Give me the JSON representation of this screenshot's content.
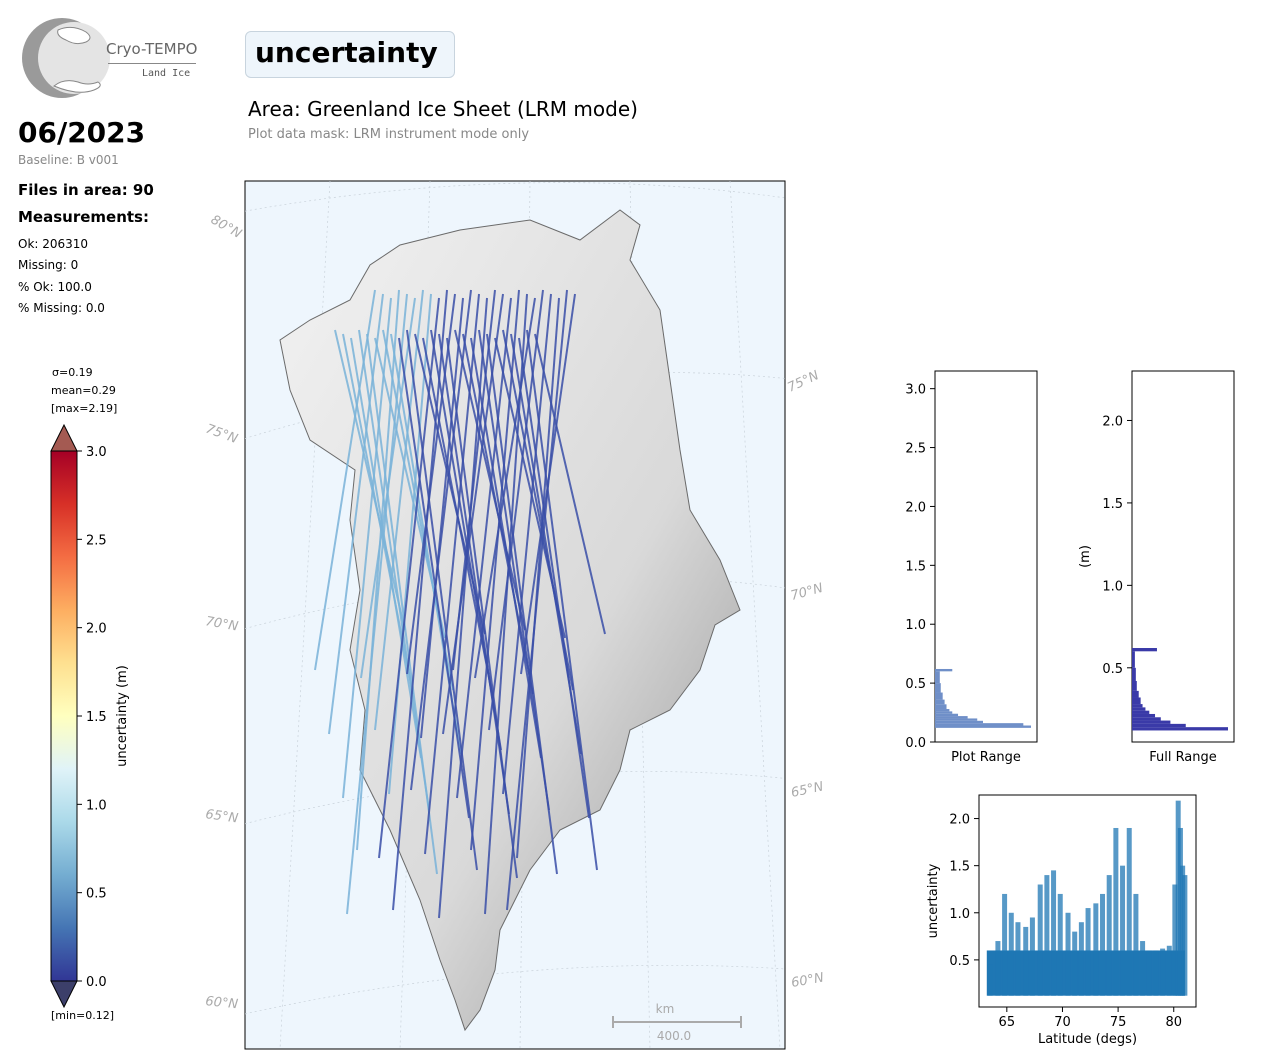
{
  "logo": {
    "name": "Cryo-TEMPO",
    "sub": "Land Ice"
  },
  "header": {
    "date": "06/2023",
    "baseline": "Baseline: B v001",
    "files": "Files in area: 90",
    "measurements_heading": "Measurements:",
    "stats": [
      "Ok: 206310",
      "Missing: 0",
      "% Ok: 100.0",
      "% Missing: 0.0"
    ],
    "title": "uncertainty",
    "area": "Area: Greenland Ice Sheet (LRM mode)",
    "mask": "Plot data mask: LRM instrument mode only"
  },
  "colorbar": {
    "label": "uncertainty (m)",
    "ticks": [
      "3.0",
      "2.5",
      "2.0",
      "1.5",
      "1.0",
      "0.5",
      "0.0"
    ],
    "sigma": "σ=0.19",
    "mean": "mean=0.29",
    "max": "[max=2.19]",
    "min": "[min=0.12]"
  },
  "map": {
    "lat_labels": [
      "80°N",
      "75°N",
      "70°N",
      "65°N",
      "60°N",
      "75°N",
      "70°N",
      "65°N",
      "60°N"
    ],
    "scale_unit": "km",
    "scale_value": "400.0"
  },
  "colors": {
    "ocean": "#eef6fd",
    "track_dark": "#3a4fa8",
    "track_light": "#7ab3d9",
    "scatter": "#1f77b4",
    "hist_full": "#3a3aa8"
  },
  "chart_data": [
    {
      "type": "bar",
      "orientation": "horizontal",
      "xlabel": "Plot Range",
      "ylim": [
        0,
        3.15
      ],
      "yticks": [
        "0.0",
        "0.5",
        "1.0",
        "1.5",
        "2.0",
        "2.5",
        "3.0"
      ],
      "bins": [
        0.12,
        0.14,
        0.16,
        0.18,
        0.2,
        0.22,
        0.24,
        0.26,
        0.28,
        0.32,
        0.36,
        0.42,
        0.5,
        0.6
      ],
      "counts": [
        100,
        92,
        50,
        44,
        34,
        24,
        18,
        15,
        12,
        10,
        8,
        6,
        5,
        18
      ]
    },
    {
      "type": "bar",
      "orientation": "horizontal",
      "xlabel": "Full Range",
      "ylabel": "(m)",
      "ylim": [
        0.05,
        2.3
      ],
      "yticks": [
        "0.5",
        "1.0",
        "1.5",
        "2.0"
      ],
      "bins": [
        0.12,
        0.14,
        0.16,
        0.18,
        0.2,
        0.22,
        0.24,
        0.26,
        0.28,
        0.32,
        0.36,
        0.42,
        0.5,
        0.6
      ],
      "counts": [
        100,
        56,
        40,
        30,
        24,
        18,
        14,
        11,
        9,
        7,
        5,
        4,
        3,
        26
      ]
    },
    {
      "type": "scatter",
      "xlabel": "Latitude (degs)",
      "ylabel": "uncertainty",
      "xlim": [
        62.5,
        82
      ],
      "ylim": [
        0,
        2.25
      ],
      "xticks": [
        65,
        70,
        75,
        80
      ],
      "yticks": [
        0.5,
        1.0,
        1.5,
        2.0
      ],
      "x": [
        63.5,
        64.2,
        64.8,
        65.4,
        66.0,
        66.7,
        67.3,
        68.0,
        68.6,
        69.2,
        69.8,
        70.5,
        71.1,
        71.7,
        72.3,
        73.0,
        73.6,
        74.2,
        74.8,
        75.4,
        76.0,
        76.6,
        77.2,
        77.8,
        78.4,
        79.0,
        79.6,
        80.1,
        80.4,
        80.6,
        80.8,
        81.0
      ],
      "y": [
        0.45,
        0.7,
        1.2,
        1.0,
        0.9,
        0.85,
        0.95,
        1.3,
        1.4,
        1.45,
        1.2,
        1.0,
        0.8,
        0.9,
        1.05,
        1.1,
        1.2,
        1.4,
        1.9,
        1.5,
        1.9,
        1.2,
        0.7,
        0.6,
        0.6,
        0.62,
        0.65,
        1.3,
        2.19,
        1.9,
        1.5,
        1.4
      ]
    }
  ]
}
